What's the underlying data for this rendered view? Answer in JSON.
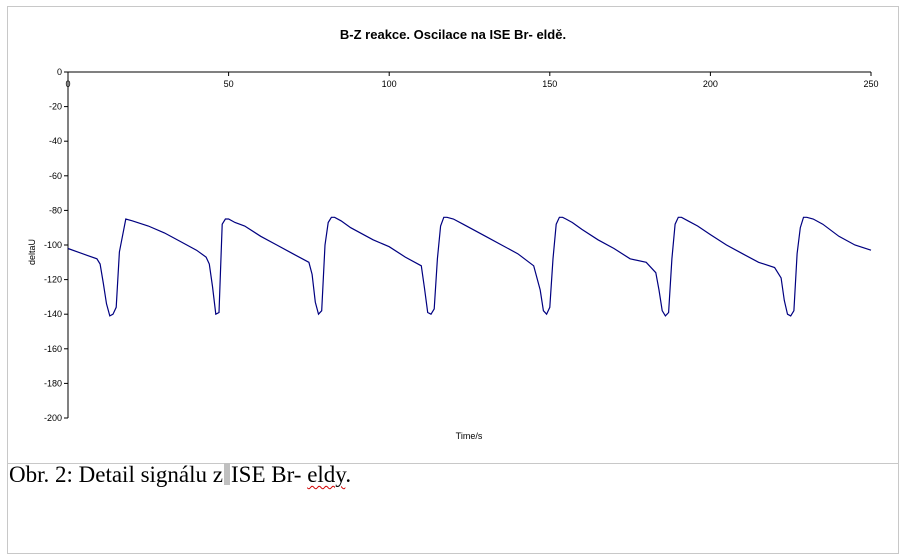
{
  "caption": {
    "prefix": "Obr. 2: Detail signálu z",
    "middle": "ISE Br- ",
    "misspelled": "eldy",
    "suffix": "."
  },
  "chart_data": {
    "type": "line",
    "title": "B-Z reakce. Oscilace na ISE  Br- eldě.",
    "xlabel": "Time/s",
    "ylabel": "deltaU",
    "xlim": [
      0,
      250
    ],
    "ylim": [
      -200,
      0
    ],
    "xticks": [
      0,
      50,
      100,
      150,
      200,
      250
    ],
    "yticks": [
      0,
      -20,
      -40,
      -60,
      -80,
      -100,
      -120,
      -140,
      -160,
      -180,
      -200
    ],
    "x_axis_position": "top",
    "grid": false,
    "legend": "none",
    "line_color": "#000080",
    "series": [
      {
        "x": [
          0,
          3,
          6,
          9,
          10,
          11,
          12,
          13,
          14,
          15,
          16,
          18,
          20,
          25,
          30,
          35,
          40,
          43,
          44,
          45,
          46,
          47,
          48,
          49,
          50,
          52,
          55,
          60,
          65,
          70,
          75,
          76,
          77,
          78,
          79,
          80,
          81,
          82,
          83,
          85,
          88,
          95,
          100,
          105,
          110,
          111,
          112,
          113,
          114,
          115,
          116,
          117,
          118,
          120,
          123,
          130,
          135,
          140,
          145,
          147,
          148,
          149,
          150,
          151,
          152,
          153,
          154,
          155,
          157,
          160,
          165,
          170,
          175,
          180,
          183,
          184,
          185,
          186,
          187,
          188,
          189,
          190,
          191,
          193,
          196,
          200,
          205,
          210,
          215,
          220,
          222,
          223,
          224,
          225,
          226,
          227,
          228,
          229,
          230,
          232,
          235,
          240,
          245,
          250
        ],
        "y": [
          -102,
          -104,
          -106,
          -108,
          -111,
          -122,
          -134,
          -141,
          -140,
          -136,
          -104,
          -85,
          -86,
          -89,
          -93,
          -98,
          -103,
          -107,
          -111,
          -124,
          -140,
          -139,
          -88,
          -85,
          -85,
          -87,
          -89,
          -95,
          -100,
          -105,
          -110,
          -117,
          -133,
          -140,
          -138,
          -100,
          -87,
          -84,
          -84,
          -86,
          -90,
          -97,
          -101,
          -107,
          -112,
          -125,
          -139,
          -140,
          -137,
          -108,
          -89,
          -84,
          -84,
          -85,
          -88,
          -95,
          -100,
          -105,
          -112,
          -126,
          -138,
          -140,
          -136,
          -108,
          -88,
          -84,
          -84,
          -85,
          -87,
          -91,
          -97,
          -102,
          -108,
          -110,
          -116,
          -126,
          -138,
          -141,
          -139,
          -108,
          -88,
          -84,
          -84,
          -86,
          -89,
          -94,
          -100,
          -105,
          -110,
          -113,
          -119,
          -132,
          -140,
          -141,
          -138,
          -105,
          -90,
          -84,
          -84,
          -85,
          -88,
          -95,
          -100,
          -103
        ]
      }
    ]
  }
}
